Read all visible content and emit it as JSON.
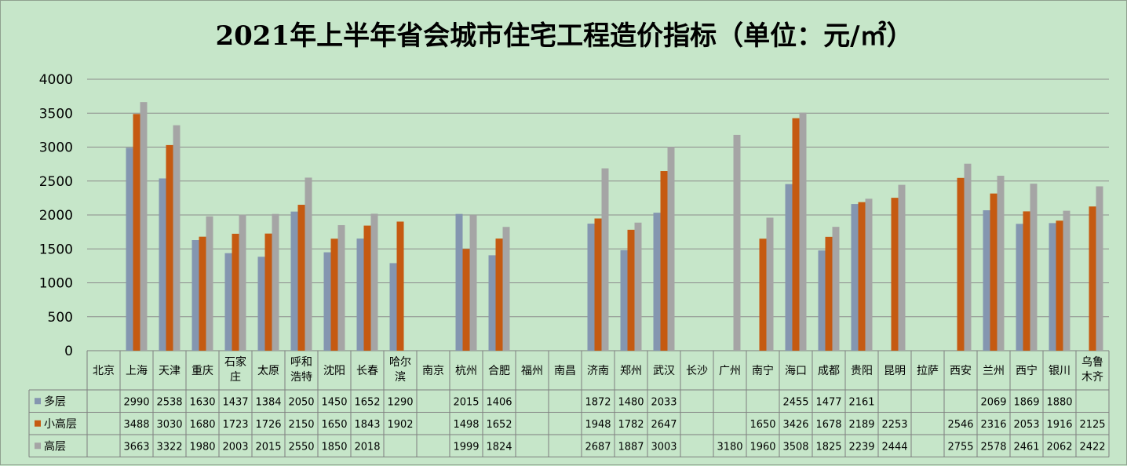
{
  "chart_data": {
    "type": "bar",
    "title": "2021年上半年省会城市住宅工程造价指标（单位：元/㎡）",
    "ylim": [
      0,
      4000
    ],
    "yticks": [
      0,
      500,
      1000,
      1500,
      2000,
      2500,
      3000,
      3500,
      4000
    ],
    "grid": true,
    "legend": "data-table",
    "categories": [
      [
        "北京"
      ],
      [
        "上海"
      ],
      [
        "天津"
      ],
      [
        "重庆"
      ],
      [
        "石家",
        "庄"
      ],
      [
        "太原"
      ],
      [
        "呼和",
        "浩特"
      ],
      [
        "沈阳"
      ],
      [
        "长春"
      ],
      [
        "哈尔",
        "滨"
      ],
      [
        "南京"
      ],
      [
        "杭州"
      ],
      [
        "合肥"
      ],
      [
        "福州"
      ],
      [
        "南昌"
      ],
      [
        "济南"
      ],
      [
        "郑州"
      ],
      [
        "武汉"
      ],
      [
        "长沙"
      ],
      [
        "广州"
      ],
      [
        "南宁"
      ],
      [
        "海口"
      ],
      [
        "成都"
      ],
      [
        "贵阳"
      ],
      [
        "昆明"
      ],
      [
        "拉萨"
      ],
      [
        "西安"
      ],
      [
        "兰州"
      ],
      [
        "西宁"
      ],
      [
        "银川"
      ],
      [
        "乌鲁",
        "木齐"
      ]
    ],
    "series": [
      {
        "name": "多层",
        "color": "#8496b0",
        "values": [
          null,
          2990,
          2538,
          1630,
          1437,
          1384,
          2050,
          1450,
          1652,
          1290,
          null,
          2015,
          1406,
          null,
          null,
          1872,
          1480,
          2033,
          null,
          null,
          null,
          2455,
          1477,
          2161,
          null,
          null,
          null,
          2069,
          1869,
          1880,
          null
        ]
      },
      {
        "name": "小高层",
        "color": "#c55a11",
        "values": [
          null,
          3488,
          3030,
          1680,
          1723,
          1726,
          2150,
          1650,
          1843,
          1902,
          null,
          1498,
          1652,
          null,
          null,
          1948,
          1782,
          2647,
          null,
          null,
          1650,
          3426,
          1678,
          2189,
          2253,
          null,
          2546,
          2316,
          2053,
          1916,
          2125
        ]
      },
      {
        "name": "高层",
        "color": "#a5a5a5",
        "values": [
          null,
          3663,
          3322,
          1980,
          2003,
          2015,
          2550,
          1850,
          2018,
          null,
          null,
          1999,
          1824,
          null,
          null,
          2687,
          1887,
          3003,
          null,
          3180,
          1960,
          3508,
          1825,
          2239,
          2444,
          null,
          2755,
          2578,
          2461,
          2062,
          2422
        ]
      }
    ]
  }
}
